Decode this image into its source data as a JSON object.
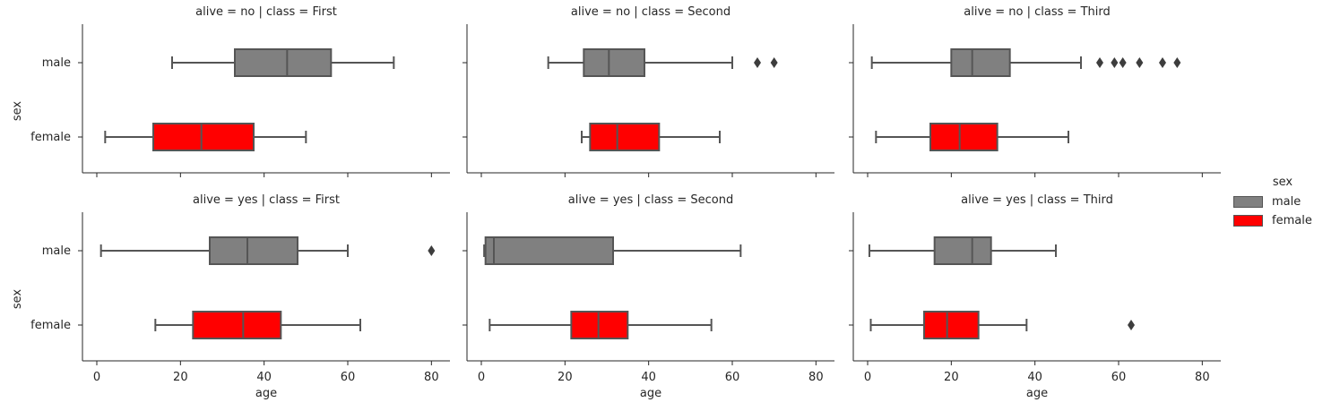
{
  "chart_data": {
    "type": "box",
    "colors": {
      "male": "#808080",
      "female": "#ff0000"
    },
    "legend": {
      "title": "sex",
      "placement": "right",
      "entries": [
        "male",
        "female"
      ]
    },
    "xlabel": "age",
    "ylabel": "sex",
    "categories": [
      "male",
      "female"
    ],
    "xlim": [
      -3,
      84
    ],
    "xticks": [
      0,
      20,
      40,
      60,
      80
    ],
    "panels": [
      {
        "title": "alive = no | class = First",
        "boxes": [
          {
            "category": "male",
            "whisker_low": 18,
            "q1": 33,
            "median": 45.5,
            "q3": 56,
            "whisker_high": 71,
            "outliers": []
          },
          {
            "category": "female",
            "whisker_low": 2,
            "q1": 13.5,
            "median": 25,
            "q3": 37.5,
            "whisker_high": 50,
            "outliers": []
          }
        ]
      },
      {
        "title": "alive = no | class = Second",
        "boxes": [
          {
            "category": "male",
            "whisker_low": 16,
            "q1": 24.5,
            "median": 30.5,
            "q3": 39,
            "whisker_high": 60,
            "outliers": [
              66,
              70
            ]
          },
          {
            "category": "female",
            "whisker_low": 24,
            "q1": 26,
            "median": 32.5,
            "q3": 42.5,
            "whisker_high": 57,
            "outliers": []
          }
        ]
      },
      {
        "title": "alive = no | class = Third",
        "boxes": [
          {
            "category": "male",
            "whisker_low": 1,
            "q1": 20,
            "median": 25,
            "q3": 34,
            "whisker_high": 51,
            "outliers": [
              55.5,
              59,
              61,
              65,
              70.5,
              74
            ]
          },
          {
            "category": "female",
            "whisker_low": 2,
            "q1": 15,
            "median": 22,
            "q3": 31,
            "whisker_high": 48,
            "outliers": []
          }
        ]
      },
      {
        "title": "alive = yes | class = First",
        "boxes": [
          {
            "category": "male",
            "whisker_low": 1,
            "q1": 27,
            "median": 36,
            "q3": 48,
            "whisker_high": 60,
            "outliers": [
              80
            ]
          },
          {
            "category": "female",
            "whisker_low": 14,
            "q1": 23,
            "median": 35,
            "q3": 44,
            "whisker_high": 63,
            "outliers": []
          }
        ]
      },
      {
        "title": "alive = yes | class = Second",
        "boxes": [
          {
            "category": "male",
            "whisker_low": 0.67,
            "q1": 1,
            "median": 3,
            "q3": 31.5,
            "whisker_high": 62,
            "outliers": []
          },
          {
            "category": "female",
            "whisker_low": 2,
            "q1": 21.5,
            "median": 28,
            "q3": 35,
            "whisker_high": 55,
            "outliers": []
          }
        ]
      },
      {
        "title": "alive = yes | class = Third",
        "boxes": [
          {
            "category": "male",
            "whisker_low": 0.42,
            "q1": 16,
            "median": 25,
            "q3": 29.5,
            "whisker_high": 45,
            "outliers": []
          },
          {
            "category": "female",
            "whisker_low": 0.75,
            "q1": 13.5,
            "median": 19,
            "q3": 26.5,
            "whisker_high": 38,
            "outliers": [
              63
            ]
          }
        ]
      }
    ]
  }
}
